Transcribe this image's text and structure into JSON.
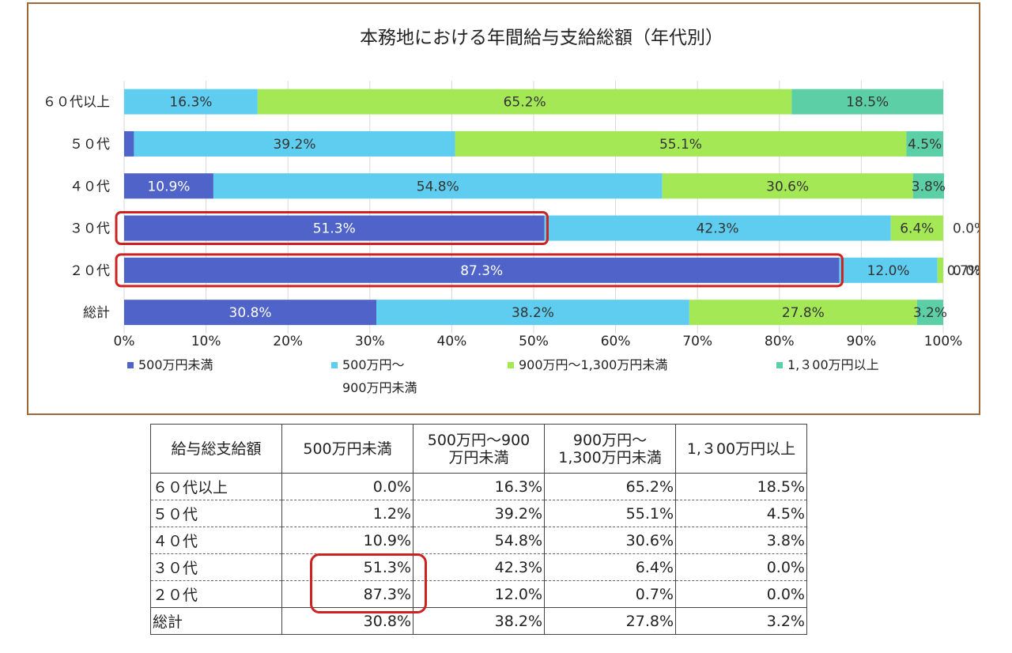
{
  "chart_data": {
    "type": "bar",
    "orientation": "horizontal",
    "stacked": "percent",
    "title": "本務地における年間給与支給総額（年代別）",
    "categories": [
      "６０代以上",
      "５０代",
      "４０代",
      "３０代",
      "２０代",
      "総計"
    ],
    "series": [
      {
        "name": "500万円未満",
        "values": [
          0.0,
          1.2,
          10.9,
          51.3,
          87.3,
          30.8
        ],
        "color": "#4f63c8",
        "label_color": "#ffffff"
      },
      {
        "name": "500万円～900万円未満",
        "values": [
          16.3,
          39.2,
          54.8,
          42.3,
          12.0,
          38.2
        ],
        "color": "#5fcdef",
        "label_color": "#333333"
      },
      {
        "name": "900万円～1,300万円未満",
        "values": [
          65.2,
          55.1,
          30.6,
          6.4,
          0.7,
          27.8
        ],
        "color": "#a5e856",
        "label_color": "#333333"
      },
      {
        "name": "1,３00万円以上",
        "values": [
          18.5,
          4.5,
          3.8,
          0.0,
          0.0,
          3.2
        ],
        "color": "#5ccfa6",
        "label_color": "#333333"
      }
    ],
    "bar_labels": [
      [
        "",
        "1.2%",
        "10.9%",
        "51.3%",
        "87.3%",
        "30.8%"
      ],
      [
        "16.3%",
        "39.2%",
        "54.8%",
        "42.3%",
        "12.0%",
        "38.2%"
      ],
      [
        "65.2%",
        "55.1%",
        "30.6%",
        "6.4%",
        "0.7%",
        "27.8%"
      ],
      [
        "18.5%",
        "4.5%",
        "3.8%",
        "0.0%",
        "0.0%",
        "3.2%"
      ]
    ],
    "xticks": [
      "0%",
      "10%",
      "20%",
      "30%",
      "40%",
      "50%",
      "60%",
      "70%",
      "80%",
      "90%",
      "100%"
    ],
    "xlim": [
      0,
      100
    ],
    "grid": true,
    "legend_position": "bottom",
    "legend_labels": [
      [
        "500万円未満"
      ],
      [
        "500万円～",
        "900万円未満"
      ],
      [
        "900万円～1,300万円未満"
      ],
      [
        "1,３00万円以上"
      ]
    ],
    "highlighted_categories": [
      "３０代",
      "２０代"
    ],
    "highlight_color": "#cc2222"
  },
  "table": {
    "headers": [
      [
        "給与総支給額"
      ],
      [
        "500万円未満"
      ],
      [
        "500万円～900",
        "万円未満"
      ],
      [
        "900万円～",
        "1,300万円未満"
      ],
      [
        "1,３00万円以上"
      ]
    ],
    "rows": [
      {
        "label": "６０代以上",
        "cells": [
          "0.0%",
          "16.3%",
          "65.2%",
          "18.5%"
        ]
      },
      {
        "label": "５０代",
        "cells": [
          "1.2%",
          "39.2%",
          "55.1%",
          "4.5%"
        ]
      },
      {
        "label": "４０代",
        "cells": [
          "10.9%",
          "54.8%",
          "30.6%",
          "3.8%"
        ]
      },
      {
        "label": "３０代",
        "cells": [
          "51.3%",
          "42.3%",
          "6.4%",
          "0.0%"
        ]
      },
      {
        "label": "２０代",
        "cells": [
          "87.3%",
          "12.0%",
          "0.7%",
          "0.0%"
        ]
      },
      {
        "label": "総計",
        "cells": [
          "30.8%",
          "38.2%",
          "27.8%",
          "3.2%"
        ]
      }
    ]
  }
}
